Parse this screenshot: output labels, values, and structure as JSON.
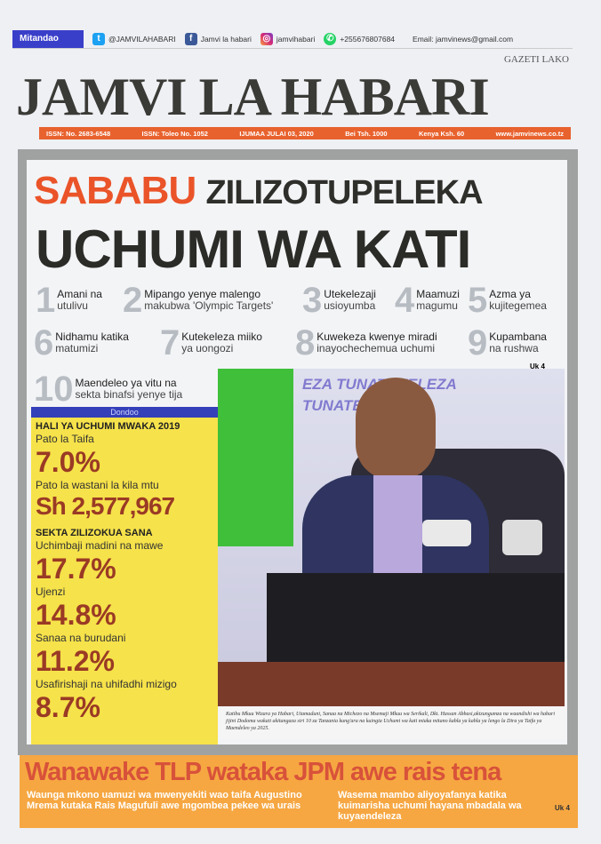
{
  "topbar": {
    "label": "Mitandao",
    "twitter": "@JAMVILAHABARI",
    "facebook": "Jamvi la habari",
    "instagram": "jamvihabari",
    "whatsapp": "+255676807684",
    "email": "Email: jamvinews@gmail.com"
  },
  "masthead": {
    "title": "JAMVI LA HABARI",
    "tagline": "GAZETI LAKO",
    "issn": "ISSN: No. 2683-6548",
    "issue": "ISSN: Toleo No. 1052",
    "date": "IJUMAA  JULAI  03, 2020",
    "price": "Bei Tsh. 1000",
    "kenya": "Kenya Ksh. 60",
    "website": "www.jamvinews.co.tz"
  },
  "headline": {
    "word1": "SABABU",
    "word2": "ZILIZOTUPELEKA",
    "line2": "UCHUMI WA KATI"
  },
  "reasons": [
    {
      "n": "1",
      "a": "Amani na",
      "b": "utulivu"
    },
    {
      "n": "2",
      "a": "Mipango yenye malengo",
      "b": "makubwa 'Olympic Targets'"
    },
    {
      "n": "3",
      "a": "Utekelezaji",
      "b": "usioyumba"
    },
    {
      "n": "4",
      "a": "Maamuzi",
      "b": "magumu"
    },
    {
      "n": "5",
      "a": "Azma ya",
      "b": "kujitegemea"
    },
    {
      "n": "6",
      "a": "Nidhamu katika",
      "b": "matumizi"
    },
    {
      "n": "7",
      "a": "Kutekeleza miiko",
      "b": "ya uongozi"
    },
    {
      "n": "8",
      "a": "Kuwekeza kwenye miradi",
      "b": "inayochechemua uchumi"
    },
    {
      "n": "9",
      "a": "Kupambana",
      "b": "na rushwa"
    },
    {
      "n": "10",
      "a": "Maendeleo ya vitu na",
      "b": "sekta binafsi yenye tija"
    }
  ],
  "page_ref": "Uk 4",
  "dondoo": {
    "bar": "Dondoo",
    "heading": "HALI YA UCHUMI MWAKA 2019",
    "l1": "Pato la Taifa",
    "v1": "7.0%",
    "l2": "Pato la wastani la kila mtu",
    "v2": "Sh 2,577,967",
    "heading2": "SEKTA ZILIZOKUA SANA",
    "sectors": [
      {
        "label": "Uchimbaji madini na mawe",
        "value": "17.7%"
      },
      {
        "label": "Ujenzi",
        "value": "14.8%"
      },
      {
        "label": "Sanaa na burudani",
        "value": "11.2%"
      },
      {
        "label": "Usafirishaji na uhifadhi mizigo",
        "value": "8.7%"
      }
    ]
  },
  "photo": {
    "banner": "EZA TUNATEKELEZA TUNATEKELEZA"
  },
  "caption": "Katibu Mkuu Wizara ya Habari, Utamaduni, Sanaa na Michezo na Msemaji Mkuu wa Serikali, Dkt. Hassan Abbasi,akizungumza na waandishi wa habari jijini Dodoma wakati akitangaza siri 10 za Tanzania kung'ara na kuingia Uchumi wa kati miaka mitano kabla ya kabla ya lengo la Dira ya Taifa ya Maendeleo ya 2025.",
  "bottom": {
    "headline": "Wanawake TLP wataka JPM awe rais tena",
    "sub1": "Waunga mkono uamuzi wa mwenyekiti wao taifa Augustino Mrema kutaka Rais Magufuli awe mgombea pekee wa urais",
    "sub2": "Wasema mambo aliyoyafanya katika kuimarisha uchumi hayana mbadala wa kuyaendeleza",
    "ref": "Uk 4"
  },
  "colors": {
    "accent_orange": "#e8622e",
    "headline_orange": "#ea5428",
    "dondoo_yellow": "#f6e24a",
    "value_red": "#9a3a25",
    "banner_orange": "#f6a742",
    "social_blue": "#3a3fc9"
  }
}
